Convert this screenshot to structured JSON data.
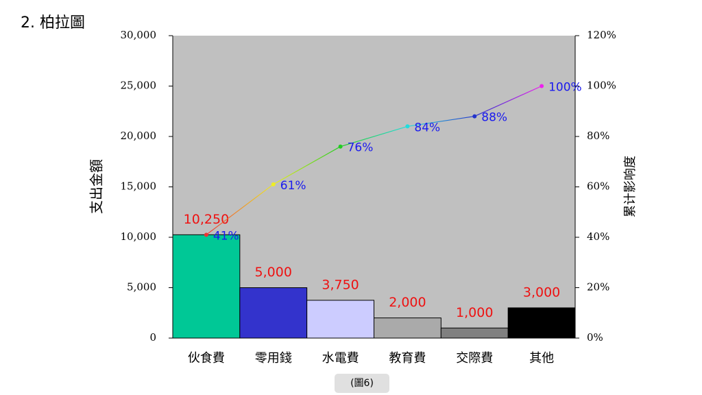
{
  "chart_data": {
    "type": "pareto",
    "title": "2. 柏拉圖",
    "caption": "(圖6)",
    "y_label": "支出金額",
    "y2_label": "累计影响度",
    "categories": [
      "伙食費",
      "零用錢",
      "水電費",
      "教育費",
      "交際費",
      "其他"
    ],
    "series": [
      {
        "name": "支出金額",
        "type": "bar",
        "values": [
          10250,
          5000,
          3750,
          2000,
          1000,
          3000
        ],
        "value_labels": [
          "10,250",
          "5,000",
          "3,750",
          "2,000",
          "1,000",
          "3,000"
        ],
        "colors": [
          "#00c896",
          "#3333cc",
          "#ccccff",
          "#aaaaaa",
          "#808080",
          "#000000"
        ],
        "label_color": "#ee1111"
      },
      {
        "name": "累计影响度",
        "type": "line",
        "axis": "y2",
        "values": [
          41,
          61,
          76,
          84,
          88,
          100
        ],
        "value_labels": [
          "41%",
          "61%",
          "76%",
          "84%",
          "88%",
          "100%"
        ],
        "colors": [
          "#ee3333",
          "#eeee22",
          "#22cc22",
          "#22dddd",
          "#2233cc",
          "#ee22ee"
        ],
        "label_color": "#1a1aee"
      }
    ],
    "ylim": [
      0,
      30000
    ],
    "yticks": [
      0,
      {
        "value": 5000,
        "label": "5,000"
      },
      {
        "value": 10000,
        "label": "10,000"
      },
      {
        "value": 15000,
        "label": "15,000"
      },
      {
        "value": 20000,
        "label": "20,000"
      },
      {
        "value": 25000,
        "label": "25,000"
      },
      {
        "value": 30000,
        "label": "30,000"
      }
    ],
    "y2lim": [
      0,
      120
    ],
    "y2ticks": [
      {
        "value": 0,
        "label": "0%"
      },
      {
        "value": 20,
        "label": "20%"
      },
      {
        "value": 40,
        "label": "40%"
      },
      {
        "value": 60,
        "label": "60%"
      },
      {
        "value": 80,
        "label": "80%"
      },
      {
        "value": 100,
        "label": "100%"
      },
      {
        "value": 120,
        "label": "120%"
      }
    ],
    "plot_background": "#c0c0c0"
  }
}
